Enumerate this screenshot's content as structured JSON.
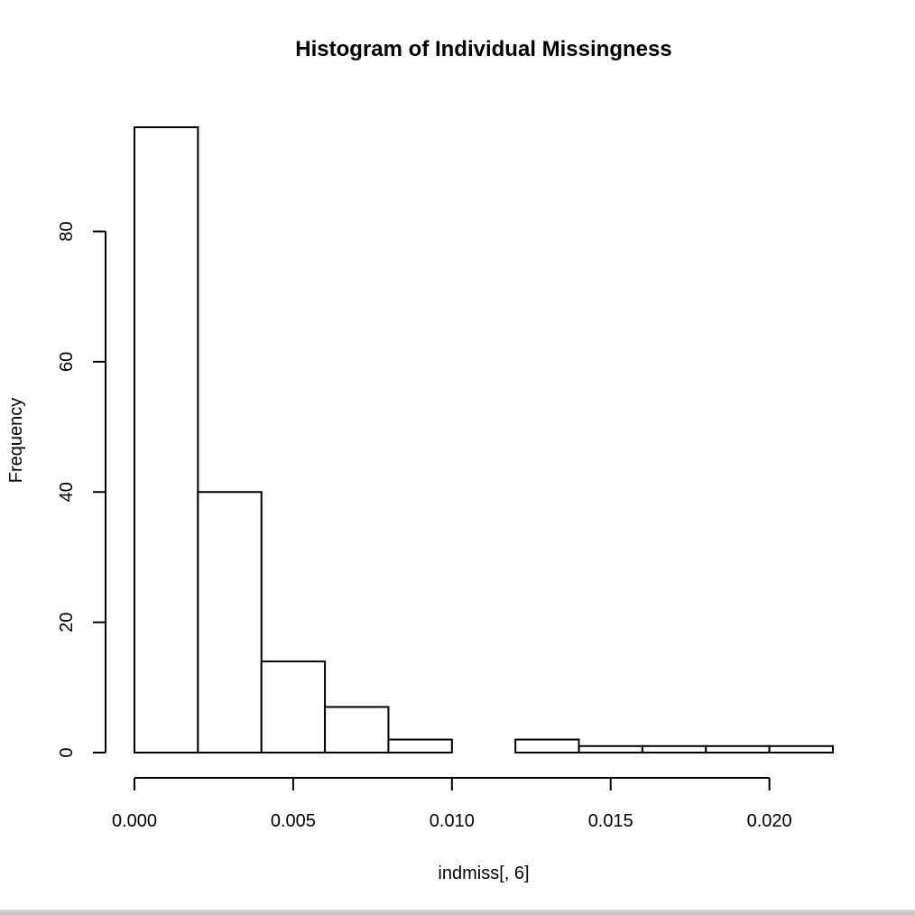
{
  "chart_data": {
    "type": "bar",
    "title": "Histogram of Individual Missingness",
    "xlabel": "indmiss[, 6]",
    "ylabel": "Frequency",
    "bins": [
      {
        "x0": 0.0,
        "x1": 0.002,
        "count": 96
      },
      {
        "x0": 0.002,
        "x1": 0.004,
        "count": 40
      },
      {
        "x0": 0.004,
        "x1": 0.006,
        "count": 14
      },
      {
        "x0": 0.006,
        "x1": 0.008,
        "count": 7
      },
      {
        "x0": 0.008,
        "x1": 0.01,
        "count": 2
      },
      {
        "x0": 0.01,
        "x1": 0.012,
        "count": 0
      },
      {
        "x0": 0.012,
        "x1": 0.014,
        "count": 2
      },
      {
        "x0": 0.014,
        "x1": 0.016,
        "count": 1
      },
      {
        "x0": 0.016,
        "x1": 0.018,
        "count": 1
      },
      {
        "x0": 0.018,
        "x1": 0.02,
        "count": 1
      },
      {
        "x0": 0.02,
        "x1": 0.022,
        "count": 1
      }
    ],
    "xlim": [
      0,
      0.022
    ],
    "ylim": [
      0,
      96
    ],
    "x_ticks": [
      0.0,
      0.005,
      0.01,
      0.015,
      0.02
    ],
    "x_tick_labels": [
      "0.000",
      "0.005",
      "0.010",
      "0.015",
      "0.020"
    ],
    "y_ticks": [
      0,
      20,
      40,
      60,
      80
    ],
    "y_tick_labels": [
      "0",
      "20",
      "40",
      "60",
      "80"
    ],
    "grid": false,
    "legend": "none"
  }
}
